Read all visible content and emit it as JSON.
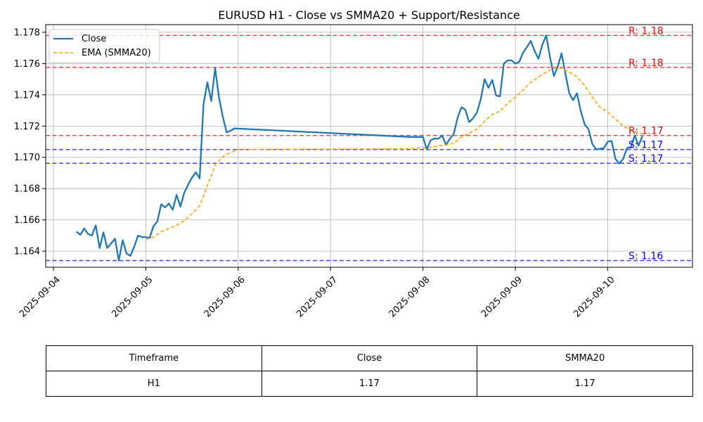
{
  "chart_data": {
    "type": "line",
    "title": "EURUSD H1 - Close vs SMMA20 + Support/Resistance",
    "xlabel": "",
    "ylabel": "",
    "x_range": [
      "2025-09-03T22:00",
      "2025-09-10T22:00"
    ],
    "ylim": [
      1.16297,
      1.17849
    ],
    "grid": true,
    "legend_position": "top-left",
    "x_ticks": [
      "2025-09-04",
      "2025-09-05",
      "2025-09-06",
      "2025-09-07",
      "2025-09-08",
      "2025-09-09",
      "2025-09-10"
    ],
    "y_ticks": [
      "1.164",
      "1.166",
      "1.168",
      "1.170",
      "1.172",
      "1.174",
      "1.176",
      "1.178"
    ],
    "colors": {
      "close": "#1f77b4",
      "ema": "#ffa500",
      "resistance": "#ff0000",
      "support": "#0000ff",
      "grid": "#b0b0b0"
    },
    "series": [
      {
        "name": "Close",
        "style": "solid",
        "points": [
          [
            "2025-09-04T06:00",
            1.16525
          ],
          [
            "2025-09-04T07:00",
            1.16505
          ],
          [
            "2025-09-04T08:00",
            1.16545
          ],
          [
            "2025-09-04T09:00",
            1.1651
          ],
          [
            "2025-09-04T10:00",
            1.165
          ],
          [
            "2025-09-04T11:00",
            1.16565
          ],
          [
            "2025-09-04T12:00",
            1.1642
          ],
          [
            "2025-09-04T13:00",
            1.1652
          ],
          [
            "2025-09-04T14:00",
            1.1642
          ],
          [
            "2025-09-04T15:00",
            1.1645
          ],
          [
            "2025-09-04T16:00",
            1.1648
          ],
          [
            "2025-09-04T17:00",
            1.1634
          ],
          [
            "2025-09-04T18:00",
            1.1647
          ],
          [
            "2025-09-04T19:00",
            1.16385
          ],
          [
            "2025-09-04T20:00",
            1.1637
          ],
          [
            "2025-09-04T21:00",
            1.1643
          ],
          [
            "2025-09-04T22:00",
            1.165
          ],
          [
            "2025-09-04T23:00",
            1.1649
          ],
          [
            "2025-09-05T00:00",
            1.1649
          ],
          [
            "2025-09-05T01:00",
            1.16485
          ],
          [
            "2025-09-05T02:00",
            1.1656
          ],
          [
            "2025-09-05T03:00",
            1.1659
          ],
          [
            "2025-09-05T04:00",
            1.167
          ],
          [
            "2025-09-05T05:00",
            1.1668
          ],
          [
            "2025-09-05T06:00",
            1.16705
          ],
          [
            "2025-09-05T07:00",
            1.16665
          ],
          [
            "2025-09-05T08:00",
            1.1676
          ],
          [
            "2025-09-05T09:00",
            1.16685
          ],
          [
            "2025-09-05T10:00",
            1.16775
          ],
          [
            "2025-09-05T11:00",
            1.16825
          ],
          [
            "2025-09-05T12:00",
            1.1687
          ],
          [
            "2025-09-05T13:00",
            1.16905
          ],
          [
            "2025-09-05T14:00",
            1.16865
          ],
          [
            "2025-09-05T15:00",
            1.1734
          ],
          [
            "2025-09-05T16:00",
            1.1748
          ],
          [
            "2025-09-05T17:00",
            1.1736
          ],
          [
            "2025-09-05T18:00",
            1.1757
          ],
          [
            "2025-09-05T19:00",
            1.17385
          ],
          [
            "2025-09-05T20:00",
            1.1726
          ],
          [
            "2025-09-05T21:00",
            1.1716
          ],
          [
            "2025-09-05T22:00",
            1.1717
          ],
          [
            "2025-09-05T23:00",
            1.17185
          ],
          [
            "2025-09-07T21:00",
            1.1713
          ],
          [
            "2025-09-08T00:00",
            1.1713
          ],
          [
            "2025-09-08T01:00",
            1.1705
          ],
          [
            "2025-09-08T02:00",
            1.1711
          ],
          [
            "2025-09-08T03:00",
            1.1712
          ],
          [
            "2025-09-08T04:00",
            1.1712
          ],
          [
            "2025-09-08T05:00",
            1.1714
          ],
          [
            "2025-09-08T06:00",
            1.1708
          ],
          [
            "2025-09-08T07:00",
            1.1712
          ],
          [
            "2025-09-08T08:00",
            1.1715
          ],
          [
            "2025-09-08T09:00",
            1.17255
          ],
          [
            "2025-09-08T10:00",
            1.1732
          ],
          [
            "2025-09-08T11:00",
            1.17305
          ],
          [
            "2025-09-08T12:00",
            1.17225
          ],
          [
            "2025-09-08T13:00",
            1.1725
          ],
          [
            "2025-09-08T14:00",
            1.17285
          ],
          [
            "2025-09-08T15:00",
            1.1737
          ],
          [
            "2025-09-08T16:00",
            1.175
          ],
          [
            "2025-09-08T17:00",
            1.17445
          ],
          [
            "2025-09-08T18:00",
            1.17495
          ],
          [
            "2025-09-08T19:00",
            1.17395
          ],
          [
            "2025-09-08T20:00",
            1.1739
          ],
          [
            "2025-09-08T21:00",
            1.176
          ],
          [
            "2025-09-08T22:00",
            1.1762
          ],
          [
            "2025-09-08T23:00",
            1.1762
          ],
          [
            "2025-09-09T00:00",
            1.176
          ],
          [
            "2025-09-09T01:00",
            1.1761
          ],
          [
            "2025-09-09T02:00",
            1.1767
          ],
          [
            "2025-09-09T03:00",
            1.17705
          ],
          [
            "2025-09-09T04:00",
            1.17745
          ],
          [
            "2025-09-09T05:00",
            1.1768
          ],
          [
            "2025-09-09T06:00",
            1.1763
          ],
          [
            "2025-09-09T07:00",
            1.1772
          ],
          [
            "2025-09-09T08:00",
            1.1778
          ],
          [
            "2025-09-09T09:00",
            1.1764
          ],
          [
            "2025-09-09T10:00",
            1.1752
          ],
          [
            "2025-09-09T11:00",
            1.1758
          ],
          [
            "2025-09-09T12:00",
            1.17665
          ],
          [
            "2025-09-09T13:00",
            1.17535
          ],
          [
            "2025-09-09T14:00",
            1.1741
          ],
          [
            "2025-09-09T15:00",
            1.17365
          ],
          [
            "2025-09-09T16:00",
            1.1741
          ],
          [
            "2025-09-09T17:00",
            1.17295
          ],
          [
            "2025-09-09T18:00",
            1.1721
          ],
          [
            "2025-09-09T19:00",
            1.1718
          ],
          [
            "2025-09-09T20:00",
            1.17085
          ],
          [
            "2025-09-09T21:00",
            1.1705
          ],
          [
            "2025-09-09T22:00",
            1.17055
          ],
          [
            "2025-09-09T23:00",
            1.1706
          ],
          [
            "2025-09-10T00:00",
            1.171
          ],
          [
            "2025-09-10T01:00",
            1.17105
          ],
          [
            "2025-09-10T02:00",
            1.1699
          ],
          [
            "2025-09-10T03:00",
            1.1696
          ],
          [
            "2025-09-10T04:00",
            1.1699
          ],
          [
            "2025-09-10T05:00",
            1.1706
          ],
          [
            "2025-09-10T06:00",
            1.17065
          ],
          [
            "2025-09-10T07:00",
            1.1714
          ],
          [
            "2025-09-10T08:00",
            1.17075
          ],
          [
            "2025-09-10T09:00",
            1.17135
          ]
        ]
      },
      {
        "name": "EMA (SMMA20)",
        "style": "dashed",
        "points": [
          [
            "2025-09-05T00:00",
            1.16475
          ],
          [
            "2025-09-05T02:00",
            1.1649
          ],
          [
            "2025-09-05T04:00",
            1.16525
          ],
          [
            "2025-09-05T06:00",
            1.16545
          ],
          [
            "2025-09-05T08:00",
            1.16565
          ],
          [
            "2025-09-05T10:00",
            1.16595
          ],
          [
            "2025-09-05T12:00",
            1.1664
          ],
          [
            "2025-09-05T14:00",
            1.1669
          ],
          [
            "2025-09-05T16:00",
            1.1682
          ],
          [
            "2025-09-05T18:00",
            1.1695
          ],
          [
            "2025-09-05T20:00",
            1.17005
          ],
          [
            "2025-09-05T22:00",
            1.1703
          ],
          [
            "2025-09-06T00:00",
            1.1705
          ],
          [
            "2025-09-07T21:00",
            1.17055
          ],
          [
            "2025-09-08T02:00",
            1.17065
          ],
          [
            "2025-09-08T06:00",
            1.1708
          ],
          [
            "2025-09-08T08:00",
            1.1709
          ],
          [
            "2025-09-08T10:00",
            1.1713
          ],
          [
            "2025-09-08T12:00",
            1.17155
          ],
          [
            "2025-09-08T14:00",
            1.1718
          ],
          [
            "2025-09-08T16:00",
            1.1723
          ],
          [
            "2025-09-08T18:00",
            1.17275
          ],
          [
            "2025-09-08T20:00",
            1.17295
          ],
          [
            "2025-09-08T22:00",
            1.17345
          ],
          [
            "2025-09-09T00:00",
            1.17385
          ],
          [
            "2025-09-09T02:00",
            1.1743
          ],
          [
            "2025-09-09T04:00",
            1.1748
          ],
          [
            "2025-09-09T06:00",
            1.17515
          ],
          [
            "2025-09-09T08:00",
            1.17545
          ],
          [
            "2025-09-09T10:00",
            1.1757
          ],
          [
            "2025-09-09T12:00",
            1.1757
          ],
          [
            "2025-09-09T14:00",
            1.17545
          ],
          [
            "2025-09-09T16:00",
            1.17515
          ],
          [
            "2025-09-09T18:00",
            1.1746
          ],
          [
            "2025-09-09T20:00",
            1.17385
          ],
          [
            "2025-09-09T22:00",
            1.1732
          ],
          [
            "2025-09-10T00:00",
            1.1729
          ],
          [
            "2025-09-10T02:00",
            1.17245
          ],
          [
            "2025-09-10T04:00",
            1.172
          ],
          [
            "2025-09-10T06:00",
            1.17175
          ],
          [
            "2025-09-10T08:00",
            1.1716
          ],
          [
            "2025-09-10T09:00",
            1.1715
          ]
        ]
      }
    ],
    "levels": [
      {
        "kind": "resistance",
        "value": 1.1778,
        "label": "R: 1.18"
      },
      {
        "kind": "resistance",
        "value": 1.17575,
        "label": "R: 1.18"
      },
      {
        "kind": "resistance",
        "value": 1.1714,
        "label": "R: 1.17"
      },
      {
        "kind": "support",
        "value": 1.1705,
        "label": "S: 1.17"
      },
      {
        "kind": "support",
        "value": 1.16962,
        "label": "S: 1.17"
      },
      {
        "kind": "support",
        "value": 1.1634,
        "label": "S: 1.16"
      }
    ]
  },
  "table": {
    "headers": [
      "Timeframe",
      "Close",
      "SMMA20"
    ],
    "rows": [
      [
        "H1",
        "1.17",
        "1.17"
      ]
    ]
  }
}
